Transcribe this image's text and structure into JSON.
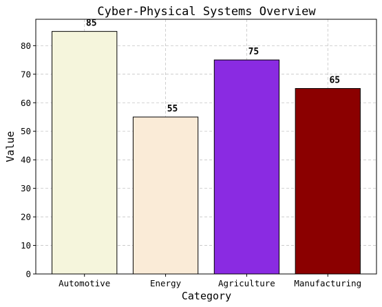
{
  "chart_data": {
    "type": "bar",
    "title": "Cyber-Physical Systems Overview",
    "xlabel": "Category",
    "ylabel": "Value",
    "categories": [
      "Automotive",
      "Energy",
      "Agriculture",
      "Manufacturing"
    ],
    "values": [
      85,
      55,
      75,
      65
    ],
    "data_labels": [
      "85",
      "55",
      "75",
      "65"
    ],
    "colors": [
      "#f5f5dc",
      "#faebd7",
      "#8a2be2",
      "#8b0000"
    ],
    "ylim": [
      0,
      89.25
    ],
    "yticks": [
      0,
      10,
      20,
      30,
      40,
      50,
      60,
      70,
      80
    ],
    "ytick_labels": [
      "0",
      "10",
      "20",
      "30",
      "40",
      "50",
      "60",
      "70",
      "80"
    ],
    "grid": true,
    "legend": "none"
  }
}
